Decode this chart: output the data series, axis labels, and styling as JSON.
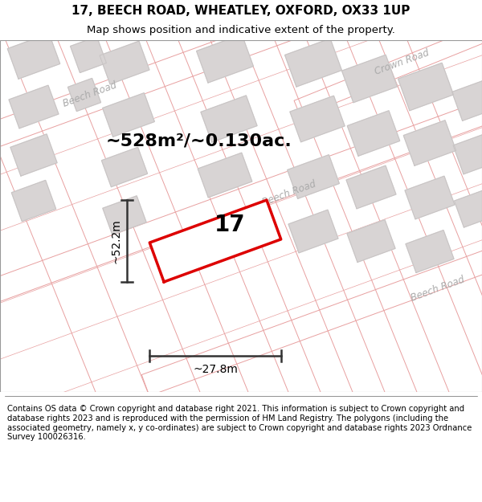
{
  "title": "17, BEECH ROAD, WHEATLEY, OXFORD, OX33 1UP",
  "subtitle": "Map shows position and indicative extent of the property.",
  "footer": "Contains OS data © Crown copyright and database right 2021. This information is subject to Crown copyright and database rights 2023 and is reproduced with the permission of HM Land Registry. The polygons (including the associated geometry, namely x, y co-ordinates) are subject to Crown copyright and database rights 2023 Ordnance Survey 100026316.",
  "area_label": "~528m²/~0.130ac.",
  "width_label": "~27.8m",
  "height_label": "~52.2m",
  "number_label": "17",
  "bg_color": "#f7f3f3",
  "road_fill": "#ffffff",
  "road_edge": "#e8a0a0",
  "building_fill": "#d8d4d4",
  "building_edge": "#c8c4c4",
  "highlight_edge": "#dd0000",
  "highlight_fill": "#ffffff",
  "dim_line_color": "#333333",
  "road_label_color": "#aaaaaa",
  "title_fontsize": 11,
  "subtitle_fontsize": 9.5,
  "footer_fontsize": 7.2,
  "area_fontsize": 16,
  "number_fontsize": 20,
  "dim_fontsize": 10,
  "road_label_fontsize": 8.5,
  "crown_road_label": "Crown Road",
  "beech_road_labels": [
    "Beech Road",
    "Beech Road",
    "Beech Road"
  ]
}
